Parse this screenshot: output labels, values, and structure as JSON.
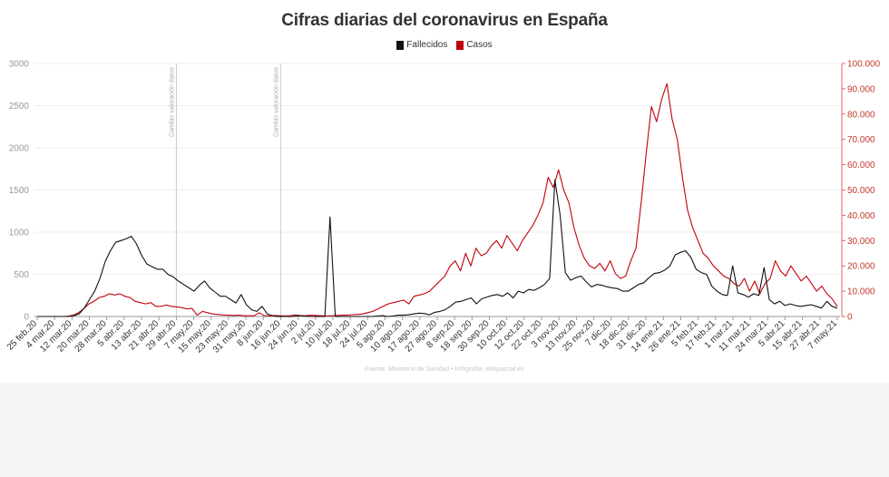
{
  "chart_data": {
    "type": "line",
    "title": "Cifras diarias del coronavirus en España",
    "source": "Fuente: Ministerio de Sanidad • Infografía: elimparcial.es",
    "colors": {
      "fallecidos": "#111111",
      "casos": "#c0000c"
    },
    "y_left": {
      "ticks": [
        "0",
        "500",
        "1000",
        "1500",
        "2000",
        "2500",
        "3000"
      ],
      "ylim": [
        0,
        3000
      ]
    },
    "y_right": {
      "ticks": [
        "0",
        "10.000",
        "20.000",
        "30.000",
        "40.000",
        "50.000",
        "60.000",
        "70.000",
        "80.000",
        "90.000",
        "100.000"
      ],
      "ylim": [
        0,
        100000
      ]
    },
    "x_ticks": [
      "25 feb.20",
      "4 mar.20",
      "12 mar.20",
      "20 mar.20",
      "28 mar.20",
      "5 abr.20",
      "13 abr.20",
      "21 abr.20",
      "29 abr.20",
      "7 may.20",
      "15 may.20",
      "23 may.20",
      "31 may.20",
      "8 jun.20",
      "16 jun.20",
      "24 jun.20",
      "2 jul.20",
      "10 jul.20",
      "18 jul.20",
      "24 jul.20",
      "5 ago.20",
      "10 ago.20",
      "17 ago.20",
      "27 ago.20",
      "8 sep.20",
      "18 sep.20",
      "30 sep.20",
      "10 oct.20",
      "12 oct.20",
      "22 oct.20",
      "3 nov.20",
      "13 nov.20",
      "25 nov.20",
      "7 dic.20",
      "18 dic.20",
      "31 dic.20",
      "14 ene.21",
      "26 ene.21",
      "5 feb.21",
      "17 feb.21",
      "1 mar.21",
      "11 mar.21",
      "24 mar.21",
      "5 abr.21",
      "15 abr.21",
      "27 abr.21",
      "7 may.21"
    ],
    "annotations": [
      {
        "label": "Cambio valoración datos",
        "at_tick": 8
      },
      {
        "label": "Cambio valoración datos",
        "at_tick": 14
      }
    ],
    "series": [
      {
        "name": "Fallecidos",
        "axis": "left",
        "values": [
          0,
          0,
          0,
          0,
          0,
          0,
          0,
          10,
          30,
          100,
          200,
          300,
          450,
          650,
          780,
          880,
          900,
          920,
          950,
          860,
          720,
          620,
          590,
          560,
          560,
          500,
          470,
          420,
          380,
          340,
          300,
          370,
          420,
          340,
          290,
          240,
          240,
          200,
          160,
          260,
          140,
          80,
          60,
          120,
          30,
          10,
          0,
          0,
          0,
          0,
          10,
          5,
          0,
          0,
          0,
          0,
          1180,
          0,
          0,
          0,
          0,
          0,
          0,
          0,
          0,
          5,
          10,
          0,
          5,
          15,
          15,
          20,
          30,
          40,
          35,
          20,
          50,
          60,
          80,
          120,
          170,
          180,
          200,
          220,
          150,
          210,
          230,
          250,
          260,
          240,
          280,
          220,
          300,
          280,
          320,
          310,
          340,
          380,
          450,
          1620,
          1200,
          520,
          430,
          460,
          480,
          410,
          350,
          380,
          370,
          350,
          340,
          330,
          300,
          300,
          340,
          380,
          400,
          460,
          510,
          520,
          550,
          600,
          730,
          760,
          780,
          700,
          560,
          520,
          500,
          360,
          300,
          260,
          250,
          600,
          280,
          260,
          230,
          270,
          250,
          580,
          200,
          150,
          180,
          130,
          150,
          130,
          120,
          130,
          140,
          120,
          100,
          180,
          120,
          100
        ]
      },
      {
        "name": "Casos",
        "axis": "right",
        "values": [
          0,
          0,
          0,
          0,
          0,
          0,
          100,
          500,
          1500,
          3000,
          5000,
          6000,
          7500,
          8000,
          9000,
          8500,
          9000,
          8000,
          7500,
          6000,
          5500,
          5000,
          5500,
          4000,
          4000,
          4500,
          4000,
          3800,
          3500,
          3000,
          3200,
          500,
          2000,
          1500,
          1000,
          800,
          600,
          500,
          400,
          500,
          300,
          300,
          250,
          1500,
          300,
          200,
          400,
          300,
          200,
          300,
          600,
          400,
          300,
          500,
          400,
          300,
          200,
          300,
          400,
          500,
          500,
          700,
          800,
          1000,
          1500,
          2000,
          3000,
          4000,
          5000,
          5500,
          6000,
          6500,
          5000,
          8000,
          8500,
          9000,
          10000,
          12000,
          14000,
          16000,
          20000,
          22000,
          18000,
          25000,
          20000,
          27000,
          24000,
          25000,
          28000,
          30000,
          27000,
          32000,
          29000,
          26000,
          30000,
          33000,
          36000,
          40000,
          45000,
          55000,
          51000,
          58000,
          50000,
          45000,
          35000,
          28000,
          23000,
          20000,
          19000,
          21000,
          18000,
          22000,
          17000,
          15000,
          16000,
          22000,
          27000,
          45000,
          65000,
          83000,
          77000,
          86000,
          92000,
          78000,
          70000,
          55000,
          42000,
          35000,
          30000,
          25000,
          23000,
          20000,
          18000,
          16000,
          15000,
          13000,
          12000,
          15000,
          10000,
          14000,
          9000,
          13000,
          15000,
          22000,
          18000,
          16000,
          20000,
          17000,
          14000,
          16000,
          13000,
          10000,
          12000,
          9000,
          7000,
          4000
        ]
      }
    ]
  }
}
